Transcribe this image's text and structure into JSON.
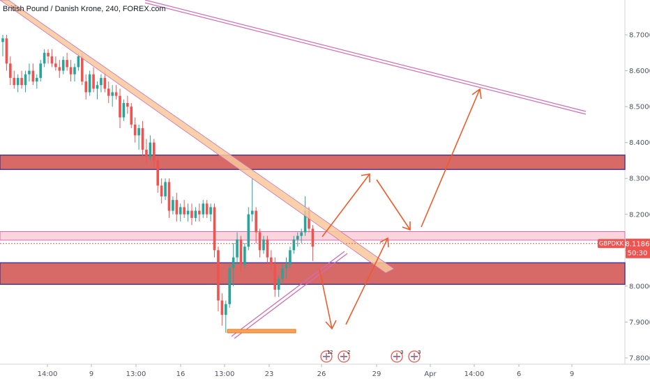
{
  "header": {
    "title": "British Pound / Danish Krone, 240, FOREX.com"
  },
  "colors": {
    "up": "#26a69a",
    "down": "#ef5350",
    "zone_red": "#d0504c",
    "zone_border": "#4b3a8a",
    "zone_pink": "#f8c8d0",
    "trendline": "#f2b27a",
    "channel": "#d36bb5",
    "arrow": "#f05a28",
    "price_badge": "#ef5350"
  },
  "price_label": {
    "symbol": "GBPDKK",
    "price": "8.1186",
    "countdown": "50:30"
  },
  "calendar_events": [
    {
      "label": "2",
      "count": "1"
    },
    {
      "label": "2",
      "count": ""
    },
    {
      "label": "3",
      "count": ""
    },
    {
      "label": "3",
      "count": ""
    }
  ],
  "chart_data": {
    "type": "candlestick",
    "title": "British Pound / Danish Krone, 240, FOREX.com",
    "y_axis": {
      "range": [
        7.79,
        8.8
      ],
      "ticks": [
        "8.7000",
        "8.6000",
        "8.5000",
        "8.4000",
        "8.3000",
        "8.2000",
        "8.1000",
        "8.0000",
        "7.9000",
        "7.8000"
      ]
    },
    "x_axis": {
      "ticks": [
        "14:00",
        "9",
        "13:00",
        "16",
        "13:00",
        "23",
        "26",
        "29",
        "Apr",
        "14:00",
        "6",
        "9"
      ]
    },
    "last_price": 8.1186,
    "zones": [
      {
        "kind": "resistance",
        "low": 8.325,
        "high": 8.365
      },
      {
        "kind": "pivot",
        "low": 8.128,
        "high": 8.152
      },
      {
        "kind": "support",
        "low": 8.005,
        "high": 8.065
      }
    ],
    "candles": [
      [
        8.68,
        8.7,
        8.64,
        8.69
      ],
      [
        8.69,
        8.7,
        8.6,
        8.62
      ],
      [
        8.62,
        8.64,
        8.56,
        8.58
      ],
      [
        8.58,
        8.6,
        8.55,
        8.56
      ],
      [
        8.56,
        8.59,
        8.54,
        8.58
      ],
      [
        8.58,
        8.6,
        8.55,
        8.56
      ],
      [
        8.56,
        8.6,
        8.54,
        8.59
      ],
      [
        8.59,
        8.62,
        8.57,
        8.6
      ],
      [
        8.6,
        8.62,
        8.56,
        8.57
      ],
      [
        8.57,
        8.59,
        8.55,
        8.58
      ],
      [
        8.58,
        8.63,
        8.57,
        8.62
      ],
      [
        8.62,
        8.66,
        8.61,
        8.65
      ],
      [
        8.65,
        8.66,
        8.62,
        8.64
      ],
      [
        8.64,
        8.66,
        8.61,
        8.62
      ],
      [
        8.62,
        8.64,
        8.6,
        8.61
      ],
      [
        8.61,
        8.63,
        8.58,
        8.6
      ],
      [
        8.6,
        8.64,
        8.59,
        8.63
      ],
      [
        8.63,
        8.65,
        8.6,
        8.61
      ],
      [
        8.61,
        8.63,
        8.57,
        8.59
      ],
      [
        8.59,
        8.62,
        8.57,
        8.61
      ],
      [
        8.61,
        8.65,
        8.6,
        8.64
      ],
      [
        8.64,
        8.65,
        8.56,
        8.57
      ],
      [
        8.57,
        8.59,
        8.52,
        8.54
      ],
      [
        8.54,
        8.6,
        8.53,
        8.59
      ],
      [
        8.59,
        8.61,
        8.54,
        8.55
      ],
      [
        8.55,
        8.57,
        8.52,
        8.56
      ],
      [
        8.56,
        8.59,
        8.54,
        8.58
      ],
      [
        8.58,
        8.6,
        8.54,
        8.55
      ],
      [
        8.55,
        8.57,
        8.51,
        8.53
      ],
      [
        8.53,
        8.56,
        8.5,
        8.54
      ],
      [
        8.54,
        8.56,
        8.52,
        8.53
      ],
      [
        8.53,
        8.55,
        8.44,
        8.47
      ],
      [
        8.47,
        8.52,
        8.46,
        8.51
      ],
      [
        8.51,
        8.53,
        8.48,
        8.5
      ],
      [
        8.5,
        8.51,
        8.44,
        8.45
      ],
      [
        8.45,
        8.47,
        8.4,
        8.42
      ],
      [
        8.42,
        8.45,
        8.38,
        8.44
      ],
      [
        8.44,
        8.46,
        8.36,
        8.38
      ],
      [
        8.38,
        8.41,
        8.34,
        8.36
      ],
      [
        8.36,
        8.42,
        8.35,
        8.4
      ],
      [
        8.4,
        8.41,
        8.33,
        8.35
      ],
      [
        8.35,
        8.36,
        8.26,
        8.28
      ],
      [
        8.28,
        8.3,
        8.23,
        8.25
      ],
      [
        8.25,
        8.3,
        8.24,
        8.29
      ],
      [
        8.29,
        8.3,
        8.19,
        8.21
      ],
      [
        8.21,
        8.25,
        8.2,
        8.24
      ],
      [
        8.24,
        8.26,
        8.18,
        8.2
      ],
      [
        8.2,
        8.23,
        8.18,
        8.22
      ],
      [
        8.22,
        8.24,
        8.19,
        8.2
      ],
      [
        8.2,
        8.23,
        8.18,
        8.21
      ],
      [
        8.21,
        8.23,
        8.17,
        8.19
      ],
      [
        8.19,
        8.22,
        8.18,
        8.21
      ],
      [
        8.21,
        8.23,
        8.18,
        8.2
      ],
      [
        8.2,
        8.24,
        8.19,
        8.23
      ],
      [
        8.23,
        8.24,
        8.19,
        8.2
      ],
      [
        8.2,
        8.23,
        8.18,
        8.22
      ],
      [
        8.22,
        8.23,
        8.08,
        8.1
      ],
      [
        8.1,
        8.11,
        7.93,
        7.96
      ],
      [
        7.96,
        7.98,
        7.89,
        7.92
      ],
      [
        7.92,
        7.96,
        7.87,
        7.95
      ],
      [
        7.95,
        8.06,
        7.94,
        8.05
      ],
      [
        8.05,
        8.12,
        8.0,
        8.08
      ],
      [
        8.08,
        8.15,
        8.06,
        8.13
      ],
      [
        8.13,
        8.14,
        8.04,
        8.06
      ],
      [
        8.06,
        8.12,
        8.05,
        8.11
      ],
      [
        8.11,
        8.22,
        8.1,
        8.2
      ],
      [
        8.2,
        8.3,
        8.18,
        8.21
      ],
      [
        8.21,
        8.22,
        8.12,
        8.15
      ],
      [
        8.15,
        8.16,
        8.08,
        8.1
      ],
      [
        8.1,
        8.14,
        8.09,
        8.13
      ],
      [
        8.13,
        8.14,
        8.06,
        8.08
      ],
      [
        8.08,
        8.1,
        8.04,
        8.06
      ],
      [
        8.06,
        8.08,
        7.97,
        7.99
      ],
      [
        7.99,
        8.03,
        7.97,
        8.02
      ],
      [
        8.02,
        8.06,
        8.01,
        8.05
      ],
      [
        8.05,
        8.08,
        8.02,
        8.06
      ],
      [
        8.06,
        8.11,
        8.05,
        8.1
      ],
      [
        8.1,
        8.14,
        8.09,
        8.13
      ],
      [
        8.13,
        8.15,
        8.11,
        8.14
      ],
      [
        8.14,
        8.16,
        8.12,
        8.15
      ],
      [
        8.15,
        8.25,
        8.14,
        8.21
      ],
      [
        8.21,
        8.22,
        8.15,
        8.16
      ],
      [
        8.16,
        8.17,
        8.07,
        8.11
      ]
    ]
  }
}
